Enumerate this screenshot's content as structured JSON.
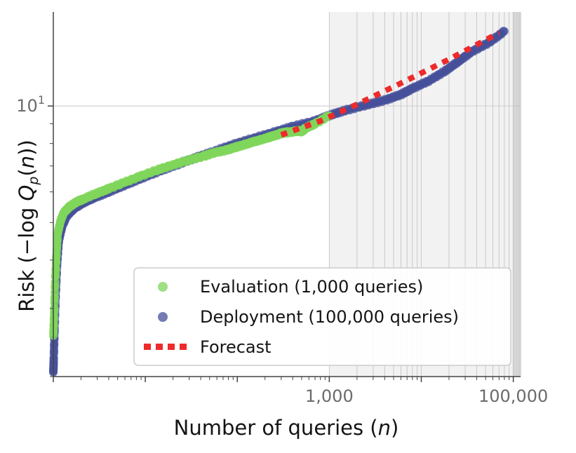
{
  "chart_data": {
    "type": "scatter",
    "xlabel": "Number of queries (n)",
    "ylabel": "Risk (−log Qp(n))",
    "x_scale": "log",
    "y_scale": "log",
    "xlim": [
      1,
      120000
    ],
    "ylim": [
      2.0,
      17.5
    ],
    "x_tick_labels": [
      {
        "value": 1000,
        "label": "1,000"
      },
      {
        "value": 100000,
        "label": "100,000"
      }
    ],
    "y_tick_labels": [
      {
        "value": 10,
        "label": "10",
        "exponent": "1"
      }
    ],
    "grid": true,
    "shaded_region": {
      "x_from": 1000,
      "x_to": 120000,
      "note": "shown as light grey band with dense vertical gridlines"
    },
    "legend_position": "lower-right",
    "colors": {
      "evaluation": "#7fd65a",
      "deployment": "#46509a",
      "forecast": "#ee2a2a",
      "grid": "#d4d4d4",
      "shade": "#f2f2f2"
    },
    "series": [
      {
        "name": "Evaluation (1,000 queries)",
        "kind": "scatter",
        "x": [
          1,
          1.02,
          1.05,
          1.08,
          1.12,
          1.2,
          1.3,
          1.5,
          1.8,
          2.2,
          3,
          4,
          6,
          9,
          14,
          20,
          30,
          45,
          60,
          80,
          100,
          130,
          170,
          220,
          260,
          300,
          350,
          450,
          500,
          550,
          700,
          1000
        ],
        "y": [
          2.55,
          2.9,
          3.6,
          4.1,
          4.7,
          5.05,
          5.3,
          5.5,
          5.65,
          5.78,
          5.95,
          6.12,
          6.35,
          6.6,
          6.85,
          7.05,
          7.25,
          7.45,
          7.6,
          7.72,
          7.85,
          8.0,
          8.15,
          8.3,
          8.4,
          8.5,
          8.55,
          8.62,
          8.6,
          8.75,
          9.0,
          9.45
        ]
      },
      {
        "name": "Deployment (100,000 queries)",
        "kind": "scatter",
        "x": [
          1,
          1.01,
          1.03,
          1.06,
          1.1,
          1.15,
          1.25,
          1.4,
          1.7,
          2.1,
          2.8,
          4,
          6,
          9,
          14,
          22,
          35,
          55,
          90,
          150,
          250,
          400,
          700,
          1000,
          1500,
          2500,
          4000,
          6000,
          8000,
          12000,
          18000,
          25000,
          35000,
          55000,
          80000
        ],
        "y": [
          2.05,
          2.2,
          2.6,
          3.2,
          3.9,
          4.5,
          4.9,
          5.2,
          5.45,
          5.62,
          5.8,
          6.0,
          6.25,
          6.5,
          6.78,
          7.05,
          7.35,
          7.62,
          7.95,
          8.25,
          8.55,
          8.85,
          9.15,
          9.45,
          9.75,
          10.05,
          10.35,
          10.7,
          11.1,
          11.6,
          12.3,
          13.0,
          13.8,
          14.6,
          15.6
        ]
      },
      {
        "name": "Forecast",
        "kind": "dotted-line",
        "x": [
          300,
          800,
          2000,
          6000,
          20000,
          70000
        ],
        "y": [
          8.42,
          9.15,
          10.1,
          11.45,
          13.2,
          15.45
        ]
      }
    ]
  }
}
